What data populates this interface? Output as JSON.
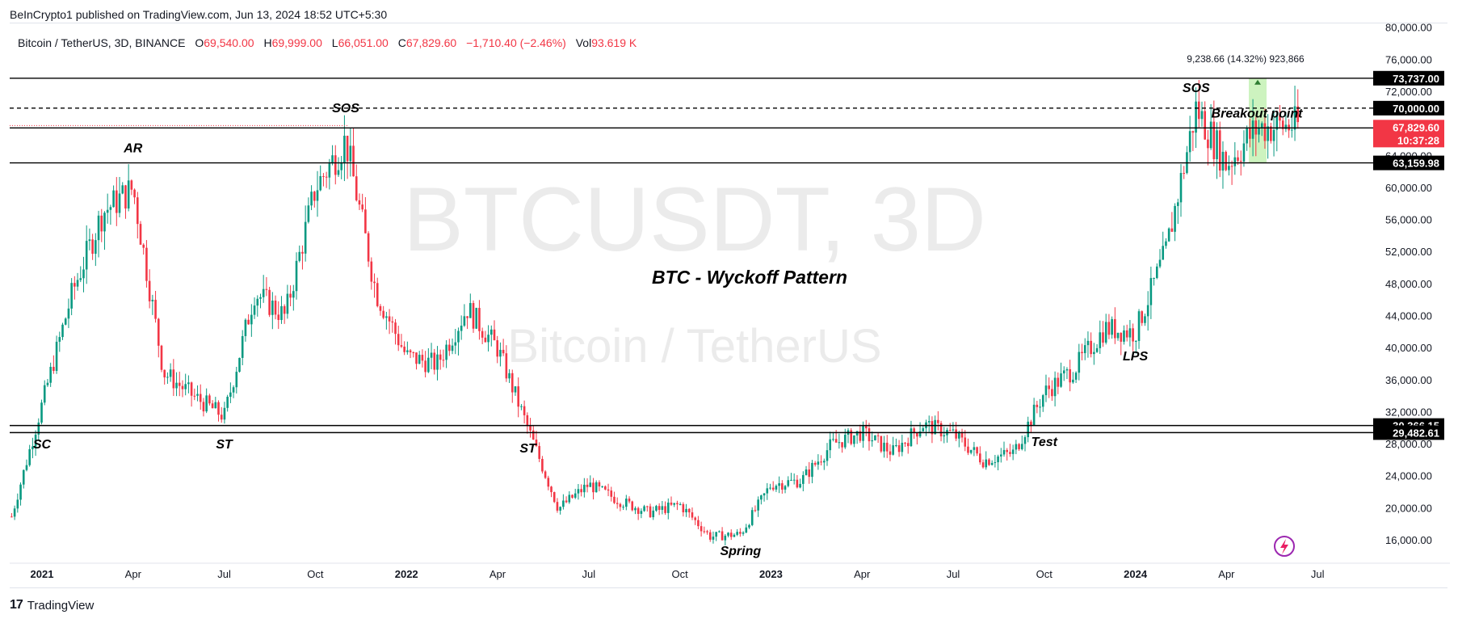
{
  "header": {
    "publish": "BeInCrypto1 published on TradingView.com, Jun 13, 2024 18:52 UTC+5:30"
  },
  "legend": {
    "symbol": "Bitcoin / TetherUS, 3D, BINANCE",
    "o_label": "O",
    "o_val": "69,540.00",
    "h_label": "H",
    "h_val": "69,999.00",
    "l_label": "L",
    "l_val": "66,051.00",
    "c_label": "C",
    "c_val": "67,829.60",
    "change": "−1,710.40 (−2.46%)",
    "vol_label": "Vol",
    "vol_val": "93.619 K"
  },
  "watermark": {
    "main": "BTCUSDT, 3D",
    "sub": "Bitcoin / TetherUS"
  },
  "title": "BTC - Wyckoff Pattern",
  "measure_label": "9,238.66 (14.32%) 923,866",
  "colors": {
    "up": "#089981",
    "down": "#f23645",
    "measure": "#c8f2b8"
  },
  "footer": {
    "brand": "TradingView"
  },
  "chart_data": {
    "type": "candlestick",
    "title": "BTC - Wyckoff Pattern",
    "ylim": [
      14000,
      80000
    ],
    "y_ticks": [
      "16,000.00",
      "20,000.00",
      "24,000.00",
      "28,000.00",
      "32,000.00",
      "36,000.00",
      "40,000.00",
      "44,000.00",
      "48,000.00",
      "52,000.00",
      "56,000.00",
      "60,000.00",
      "64,000.00",
      "68,000.00",
      "72,000.00",
      "76,000.00",
      "80,000.00"
    ],
    "x_ticks": [
      {
        "label": "2021",
        "date": "2021-01"
      },
      {
        "label": "Apr",
        "date": "2021-04"
      },
      {
        "label": "Jul",
        "date": "2021-07"
      },
      {
        "label": "Oct",
        "date": "2021-10"
      },
      {
        "label": "2022",
        "date": "2022-01"
      },
      {
        "label": "Apr",
        "date": "2022-04"
      },
      {
        "label": "Jul",
        "date": "2022-07"
      },
      {
        "label": "Oct",
        "date": "2022-10"
      },
      {
        "label": "2023",
        "date": "2023-01"
      },
      {
        "label": "Apr",
        "date": "2023-04"
      },
      {
        "label": "Jul",
        "date": "2023-07"
      },
      {
        "label": "Oct",
        "date": "2023-10"
      },
      {
        "label": "2024",
        "date": "2024-01"
      },
      {
        "label": "Apr",
        "date": "2024-04"
      },
      {
        "label": "Jul",
        "date": "2024-07"
      }
    ],
    "price_series": [
      {
        "date": "2020-12",
        "value": 19000
      },
      {
        "date": "2021-01",
        "value": 33000
      },
      {
        "date": "2021-02",
        "value": 47000
      },
      {
        "date": "2021-03",
        "value": 57000
      },
      {
        "date": "2021-04",
        "value": 60000
      },
      {
        "date": "2021-05",
        "value": 37000
      },
      {
        "date": "2021-06",
        "value": 34000
      },
      {
        "date": "2021-07",
        "value": 31500
      },
      {
        "date": "2021-08",
        "value": 47000
      },
      {
        "date": "2021-09",
        "value": 44000
      },
      {
        "date": "2021-10",
        "value": 60000
      },
      {
        "date": "2021-11",
        "value": 66000
      },
      {
        "date": "2021-12",
        "value": 47000
      },
      {
        "date": "2022-01",
        "value": 39000
      },
      {
        "date": "2022-02",
        "value": 38000
      },
      {
        "date": "2022-03",
        "value": 45000
      },
      {
        "date": "2022-04",
        "value": 40000
      },
      {
        "date": "2022-05",
        "value": 30000
      },
      {
        "date": "2022-06",
        "value": 20000
      },
      {
        "date": "2022-07",
        "value": 23000
      },
      {
        "date": "2022-08",
        "value": 21000
      },
      {
        "date": "2022-09",
        "value": 19500
      },
      {
        "date": "2022-10",
        "value": 20500
      },
      {
        "date": "2022-11",
        "value": 16500
      },
      {
        "date": "2022-12",
        "value": 16800
      },
      {
        "date": "2023-01",
        "value": 23000
      },
      {
        "date": "2023-02",
        "value": 23500
      },
      {
        "date": "2023-03",
        "value": 28000
      },
      {
        "date": "2023-04",
        "value": 29500
      },
      {
        "date": "2023-05",
        "value": 27000
      },
      {
        "date": "2023-06",
        "value": 30500
      },
      {
        "date": "2023-07",
        "value": 29300
      },
      {
        "date": "2023-08",
        "value": 26000
      },
      {
        "date": "2023-09",
        "value": 27000
      },
      {
        "date": "2023-10",
        "value": 34500
      },
      {
        "date": "2023-11",
        "value": 37500
      },
      {
        "date": "2023-12",
        "value": 42500
      },
      {
        "date": "2024-01",
        "value": 42000
      },
      {
        "date": "2024-02",
        "value": 52000
      },
      {
        "date": "2024-03",
        "value": 70000
      },
      {
        "date": "2024-04",
        "value": 63000
      },
      {
        "date": "2024-05",
        "value": 67500
      },
      {
        "date": "2024-06",
        "value": 67829.6
      }
    ],
    "levels": [
      {
        "value": 73737.0,
        "label": "73,737.00",
        "style": "solid"
      },
      {
        "value": 70000.0,
        "label": "70,000.00",
        "style": "dashed"
      },
      {
        "value": 67525.83,
        "label": "67,525.83",
        "style": "solid"
      },
      {
        "value": 63159.98,
        "label": "63,159.98",
        "style": "solid"
      },
      {
        "value": 30366.15,
        "label": "30,366.15",
        "style": "solid"
      },
      {
        "value": 29482.61,
        "label": "29,482.61",
        "style": "solid"
      }
    ],
    "last_price": {
      "value": 67829.6,
      "label": "67,829.60",
      "countdown": "10:37:28"
    },
    "annotations": [
      {
        "text": "SC",
        "date": "2021-01",
        "value": 27500
      },
      {
        "text": "AR",
        "date": "2021-04",
        "value": 64500
      },
      {
        "text": "ST",
        "date": "2021-07",
        "value": 27500
      },
      {
        "text": "SOS",
        "date": "2021-11",
        "value": 69500
      },
      {
        "text": "ST",
        "date": "2022-05",
        "value": 27000
      },
      {
        "text": "Spring",
        "date": "2022-12",
        "value": 14200
      },
      {
        "text": "Test",
        "date": "2023-10",
        "value": 27800
      },
      {
        "text": "LPS",
        "date": "2024-01",
        "value": 38500
      },
      {
        "text": "SOS",
        "date": "2024-03",
        "value": 72000
      },
      {
        "text": "Breakout point",
        "date": "2024-05",
        "value": 68800
      }
    ]
  }
}
